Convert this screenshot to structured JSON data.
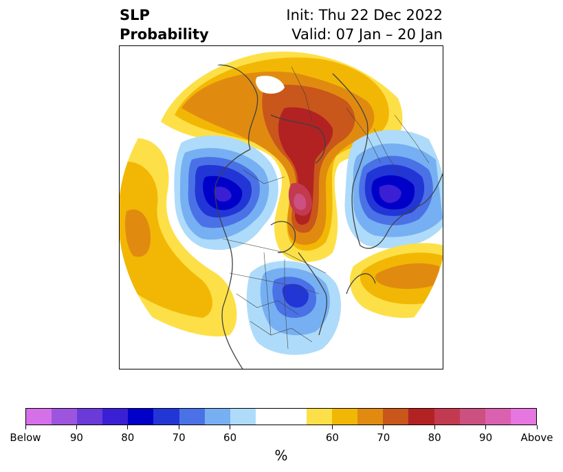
{
  "title": {
    "left_line1": "SLP",
    "left_line2": "Probability",
    "right_line1": "Init: Thu 22 Dec 2022",
    "right_line2": "Valid: 07 Jan – 20 Jan"
  },
  "colorbar": {
    "unit": "%",
    "colors": [
      "#d670e8",
      "#9d55e0",
      "#6a3bd8",
      "#3a1fd4",
      "#0000c8",
      "#2236d6",
      "#4a72e6",
      "#76b0f2",
      "#aedbfa",
      "#ffffff",
      "#fde047",
      "#f2b705",
      "#e08b10",
      "#c9561a",
      "#b22222",
      "#c23a50",
      "#cc5080",
      "#da60b0",
      "#e676e0"
    ],
    "labels": [
      "Below",
      "90",
      "80",
      "70",
      "60",
      "60",
      "70",
      "80",
      "90",
      "Above"
    ]
  },
  "map": {
    "projection": "north polar stereographic",
    "features": [
      "coastlines",
      "country borders",
      "state and province borders"
    ]
  }
}
